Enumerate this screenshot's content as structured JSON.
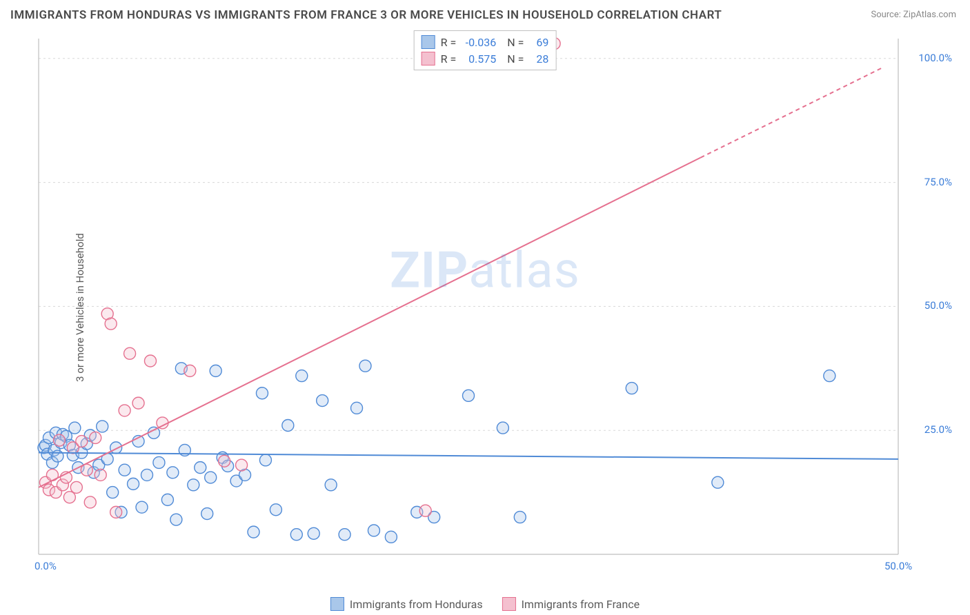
{
  "title": "IMMIGRANTS FROM HONDURAS VS IMMIGRANTS FROM FRANCE 3 OR MORE VEHICLES IN HOUSEHOLD CORRELATION CHART",
  "source": "Source: ZipAtlas.com",
  "ylabel": "3 or more Vehicles in Household",
  "watermark_a": "ZIP",
  "watermark_b": "atlas",
  "chart": {
    "type": "scatter-with-regression",
    "background_color": "#ffffff",
    "grid_color": "#d8d8d8",
    "grid_dash": "3,4",
    "axis_color": "#bfbfbf",
    "text_color": "#4a4a4a",
    "tick_color": "#3b7dd8",
    "xlim": [
      0,
      50
    ],
    "ylim": [
      0,
      104
    ],
    "xticks": [
      {
        "v": 0,
        "label": "0.0%"
      },
      {
        "v": 50,
        "label": "50.0%"
      }
    ],
    "yticks": [
      {
        "v": 25,
        "label": "25.0%"
      },
      {
        "v": 50,
        "label": "50.0%"
      },
      {
        "v": 75,
        "label": "75.0%"
      },
      {
        "v": 100,
        "label": "100.0%"
      }
    ],
    "marker_radius": 8.5,
    "marker_stroke_width": 1.4,
    "marker_fill_opacity": 0.35,
    "line_width": 2,
    "series": [
      {
        "name": "Immigrants from Honduras",
        "color_fill": "#a9c7ea",
        "color_stroke": "#4f8ad6",
        "R": "-0.036",
        "N": "69",
        "regression": {
          "x1": 0,
          "y1": 20.5,
          "x2": 50,
          "y2": 19.2,
          "dash": null,
          "dash_extension": null
        },
        "points": [
          [
            0.3,
            21.5
          ],
          [
            0.4,
            22.0
          ],
          [
            0.5,
            20.2
          ],
          [
            0.6,
            23.5
          ],
          [
            0.8,
            18.5
          ],
          [
            0.9,
            21.0
          ],
          [
            1.0,
            24.5
          ],
          [
            1.1,
            19.8
          ],
          [
            1.3,
            22.5
          ],
          [
            1.4,
            24.2
          ],
          [
            1.6,
            23.8
          ],
          [
            1.8,
            22.0
          ],
          [
            2.0,
            20.0
          ],
          [
            2.1,
            25.5
          ],
          [
            2.3,
            17.5
          ],
          [
            2.5,
            20.5
          ],
          [
            2.8,
            22.3
          ],
          [
            3.0,
            24.0
          ],
          [
            3.2,
            16.5
          ],
          [
            3.5,
            18.0
          ],
          [
            3.7,
            25.8
          ],
          [
            4.0,
            19.2
          ],
          [
            4.3,
            12.5
          ],
          [
            4.5,
            21.5
          ],
          [
            4.8,
            8.5
          ],
          [
            5.0,
            17.0
          ],
          [
            5.5,
            14.2
          ],
          [
            5.8,
            22.8
          ],
          [
            6.0,
            9.5
          ],
          [
            6.3,
            16.0
          ],
          [
            6.7,
            24.5
          ],
          [
            7.0,
            18.5
          ],
          [
            7.5,
            11.0
          ],
          [
            7.8,
            16.5
          ],
          [
            8.0,
            7.0
          ],
          [
            8.3,
            37.5
          ],
          [
            8.5,
            21.0
          ],
          [
            9.0,
            14.0
          ],
          [
            9.4,
            17.5
          ],
          [
            9.8,
            8.2
          ],
          [
            10.0,
            15.5
          ],
          [
            10.3,
            37.0
          ],
          [
            10.7,
            19.5
          ],
          [
            11.0,
            17.8
          ],
          [
            11.5,
            14.8
          ],
          [
            12.0,
            16.0
          ],
          [
            12.5,
            4.5
          ],
          [
            13.0,
            32.5
          ],
          [
            13.2,
            19.0
          ],
          [
            13.8,
            9.0
          ],
          [
            14.5,
            26.0
          ],
          [
            15.0,
            4.0
          ],
          [
            15.3,
            36.0
          ],
          [
            16.0,
            4.2
          ],
          [
            16.5,
            31.0
          ],
          [
            17.0,
            14.0
          ],
          [
            17.8,
            4.0
          ],
          [
            18.5,
            29.5
          ],
          [
            19.0,
            38.0
          ],
          [
            19.5,
            4.8
          ],
          [
            20.5,
            3.5
          ],
          [
            22.0,
            8.5
          ],
          [
            23.0,
            7.5
          ],
          [
            25.0,
            32.0
          ],
          [
            27.0,
            25.5
          ],
          [
            28.0,
            7.5
          ],
          [
            34.5,
            33.5
          ],
          [
            39.5,
            14.5
          ],
          [
            46.0,
            36.0
          ]
        ]
      },
      {
        "name": "Immigrants from France",
        "color_fill": "#f4c0cf",
        "color_stroke": "#e5708f",
        "R": "0.575",
        "N": "28",
        "regression": {
          "x1": 0,
          "y1": 13.5,
          "x2": 38.5,
          "y2": 80.0,
          "dash": null,
          "dash_extension": {
            "x1": 38.5,
            "y1": 80.0,
            "x2": 49.0,
            "y2": 98.0,
            "dash": "6,5"
          }
        },
        "points": [
          [
            0.4,
            14.5
          ],
          [
            0.6,
            13.0
          ],
          [
            0.8,
            16.0
          ],
          [
            1.0,
            12.5
          ],
          [
            1.2,
            23.0
          ],
          [
            1.4,
            14.0
          ],
          [
            1.6,
            15.5
          ],
          [
            1.8,
            11.5
          ],
          [
            2.0,
            21.5
          ],
          [
            2.2,
            13.5
          ],
          [
            2.5,
            22.8
          ],
          [
            2.8,
            17.0
          ],
          [
            3.0,
            10.5
          ],
          [
            3.3,
            23.5
          ],
          [
            3.6,
            16.0
          ],
          [
            4.0,
            48.5
          ],
          [
            4.2,
            46.5
          ],
          [
            4.5,
            8.5
          ],
          [
            5.0,
            29.0
          ],
          [
            5.3,
            40.5
          ],
          [
            5.8,
            30.5
          ],
          [
            6.5,
            39.0
          ],
          [
            7.2,
            26.5
          ],
          [
            8.8,
            37.0
          ],
          [
            10.8,
            18.8
          ],
          [
            11.8,
            18.0
          ],
          [
            22.5,
            8.8
          ],
          [
            30.0,
            103.0
          ]
        ]
      }
    ],
    "bottom_legend": [
      {
        "label": "Immigrants from Honduras",
        "fill": "#a9c7ea",
        "stroke": "#4f8ad6"
      },
      {
        "label": "Immigrants from France",
        "fill": "#f4c0cf",
        "stroke": "#e5708f"
      }
    ]
  }
}
